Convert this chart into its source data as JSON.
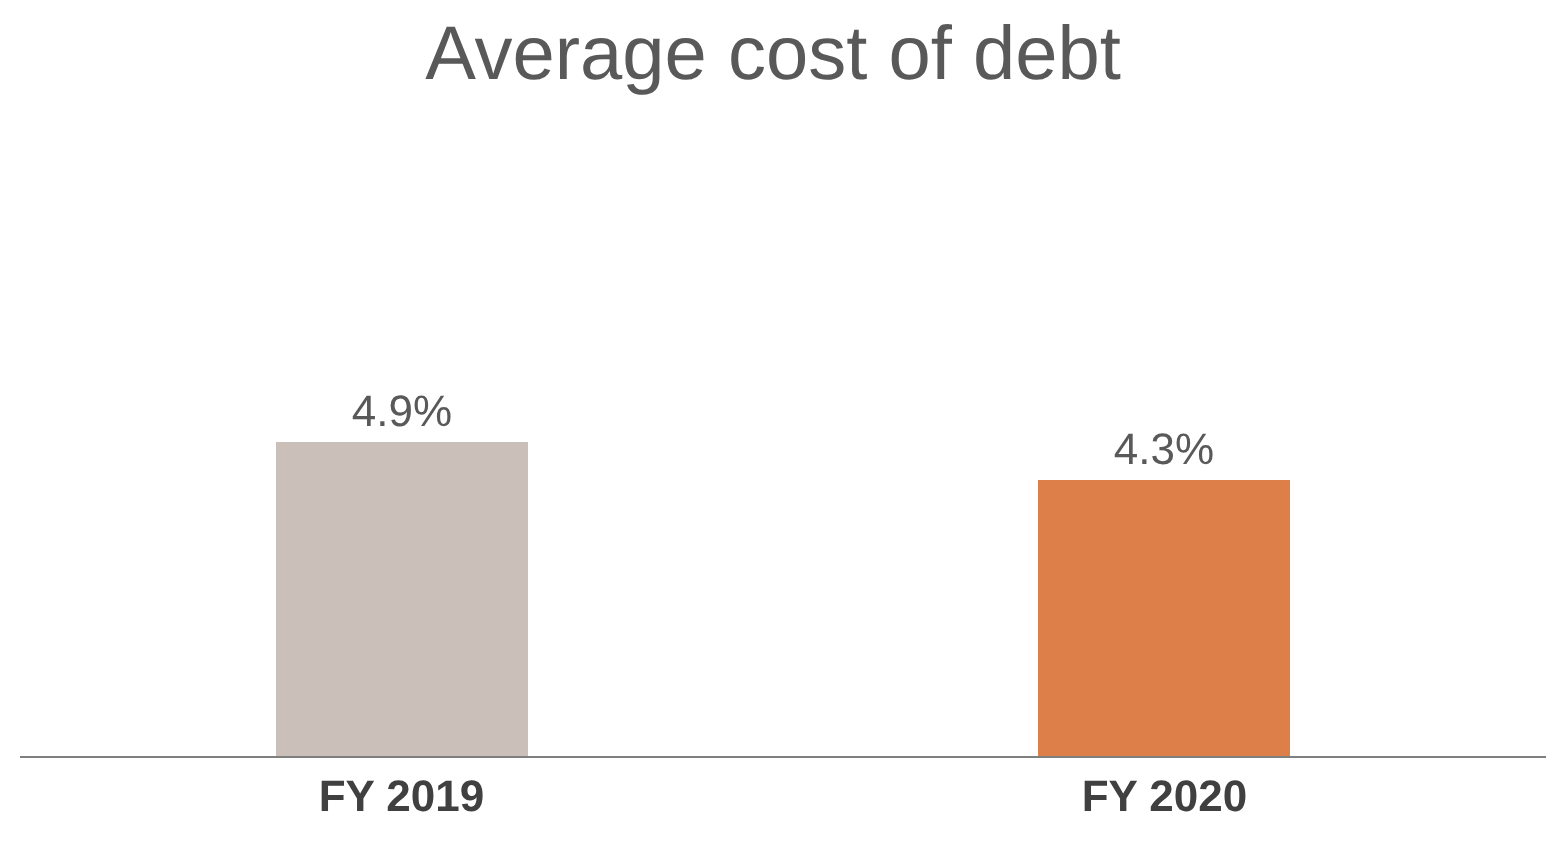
{
  "chart_data": {
    "type": "bar",
    "title": "Average cost of debt",
    "categories": [
      "FY 2019",
      "FY 2020"
    ],
    "values": [
      4.9,
      4.3
    ],
    "colors": [
      "#cbbfba",
      "#dd7f48"
    ],
    "value_labels": [
      "4.9%",
      "4.3%"
    ]
  }
}
